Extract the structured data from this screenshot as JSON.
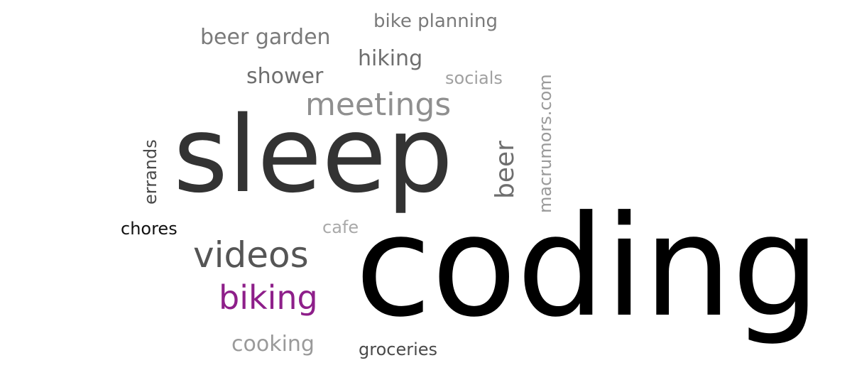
{
  "words": {
    "coding": {
      "text": "coding",
      "color": "#000000"
    },
    "sleep": {
      "text": "sleep",
      "color": "#333333"
    },
    "meetings": {
      "text": "meetings",
      "color": "#8f8f8f"
    },
    "videos": {
      "text": "videos",
      "color": "#555555"
    },
    "biking": {
      "text": "biking",
      "color": "#8e1f8a"
    },
    "beer": {
      "text": "beer",
      "color": "#6e6e6e"
    },
    "macrumors": {
      "text": "macrumors.com",
      "color": "#9a9a9a"
    },
    "errands": {
      "text": "errands",
      "color": "#4a4a4a"
    },
    "chores": {
      "text": "chores",
      "color": "#111111"
    },
    "cafe": {
      "text": "cafe",
      "color": "#a9a9a9"
    },
    "cooking": {
      "text": "cooking",
      "color": "#9a9a9a"
    },
    "groceries": {
      "text": "groceries",
      "color": "#4a4a4a"
    },
    "hiking": {
      "text": "hiking",
      "color": "#6e6e6e"
    },
    "shower": {
      "text": "shower",
      "color": "#6e6e6e"
    },
    "socials": {
      "text": "socials",
      "color": "#a0a0a0"
    },
    "beer_garden": {
      "text": "beer garden",
      "color": "#7a7a7a"
    },
    "bike_planning": {
      "text": "bike planning",
      "color": "#7a7a7a"
    }
  }
}
